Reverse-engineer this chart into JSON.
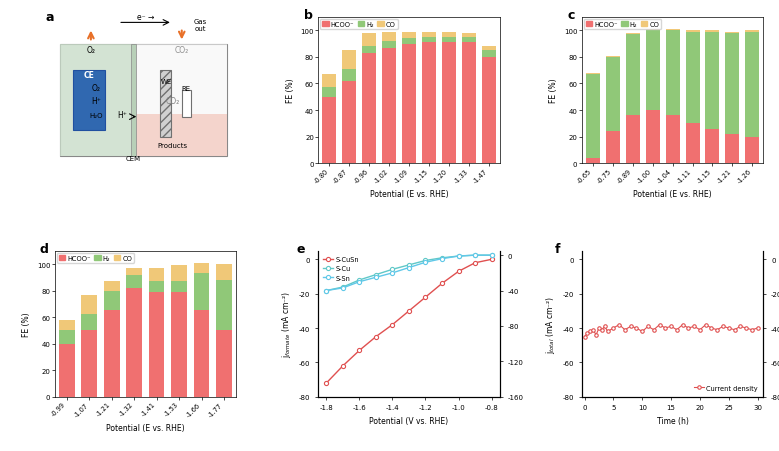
{
  "panel_b": {
    "potentials": [
      "-0.80",
      "-0.87",
      "-0.96",
      "-1.02",
      "-1.09",
      "-1.15",
      "-1.20",
      "-1.33",
      "-1.47"
    ],
    "HCOO": [
      50,
      62,
      83,
      87,
      90,
      91,
      91,
      91,
      80
    ],
    "H2": [
      7,
      9,
      5,
      5,
      4,
      4,
      4,
      4,
      5
    ],
    "CO": [
      10,
      14,
      10,
      7,
      5,
      4,
      4,
      3,
      3
    ]
  },
  "panel_c": {
    "potentials": [
      "-0.65",
      "-0.75",
      "-0.89",
      "-1.00",
      "-1.04",
      "-1.11",
      "-1.15",
      "-1.21",
      "-1.26"
    ],
    "HCOO": [
      4,
      24,
      36,
      40,
      36,
      30,
      26,
      22,
      20
    ],
    "H2": [
      63,
      56,
      61,
      60,
      64,
      69,
      73,
      76,
      79
    ],
    "CO": [
      1,
      1,
      1,
      1,
      1,
      1,
      1,
      1,
      1
    ]
  },
  "panel_d": {
    "potentials": [
      "-0.99",
      "-1.07",
      "-1.21",
      "-1.32",
      "-1.41",
      "-1.53",
      "-1.66",
      "-1.77"
    ],
    "HCOO": [
      40,
      50,
      65,
      82,
      79,
      79,
      65,
      50
    ],
    "H2": [
      10,
      12,
      15,
      10,
      8,
      8,
      28,
      38
    ],
    "CO": [
      8,
      15,
      7,
      5,
      10,
      12,
      8,
      12
    ]
  },
  "panel_e": {
    "S_CuSn_x": [
      -1.8,
      -1.7,
      -1.6,
      -1.5,
      -1.4,
      -1.3,
      -1.2,
      -1.1,
      -1.0,
      -0.9,
      -0.8
    ],
    "S_CuSn_y": [
      -72,
      -62,
      -53,
      -45,
      -38,
      -30,
      -22,
      -14,
      -7,
      -2,
      0
    ],
    "S_Cu_x": [
      -1.8,
      -1.7,
      -1.6,
      -1.5,
      -1.4,
      -1.3,
      -1.2,
      -1.1,
      -1.0,
      -0.9,
      -0.8
    ],
    "S_Cu_y": [
      -40,
      -36,
      -28,
      -22,
      -16,
      -11,
      -6,
      -3,
      -1,
      0,
      0
    ],
    "S_Sn_x": [
      -1.8,
      -1.7,
      -1.6,
      -1.5,
      -1.4,
      -1.3,
      -1.2,
      -1.1,
      -1.0,
      -0.9,
      -0.8
    ],
    "S_Sn_y": [
      -40,
      -37,
      -30,
      -25,
      -20,
      -14,
      -8,
      -4,
      -1,
      0,
      0
    ],
    "left_ylim": [
      -80,
      5
    ],
    "right_ylim": [
      -160,
      5
    ],
    "left_yticks": [
      0,
      -20,
      -40,
      -60,
      -80
    ],
    "right_yticks": [
      0,
      -40,
      -80,
      -120,
      -160
    ]
  },
  "panel_f": {
    "time": [
      0.0,
      0.5,
      1.0,
      1.5,
      2.0,
      2.5,
      3.0,
      3.5,
      4.0,
      5.0,
      6.0,
      7.0,
      8.0,
      9.0,
      10.0,
      11.0,
      12.0,
      13.0,
      14.0,
      15.0,
      16.0,
      17.0,
      18.0,
      19.0,
      20.0,
      21.0,
      22.0,
      23.0,
      24.0,
      25.0,
      26.0,
      27.0,
      28.0,
      29.0,
      30.0
    ],
    "current": [
      -45,
      -43,
      -42,
      -41,
      -44,
      -40,
      -41,
      -39,
      -42,
      -40,
      -38,
      -41,
      -39,
      -40,
      -42,
      -39,
      -41,
      -38,
      -40,
      -39,
      -41,
      -38,
      -40,
      -39,
      -41,
      -38,
      -40,
      -41,
      -39,
      -40,
      -41,
      -39,
      -40,
      -41,
      -40
    ],
    "ylim_left": [
      5,
      -80
    ],
    "ylim_right": [
      5,
      -80
    ],
    "yticks": [
      0,
      -20,
      -40,
      -60,
      -80
    ]
  },
  "colors": {
    "HCOO": "#f07070",
    "H2": "#90c878",
    "CO": "#f0c878",
    "S_CuSn": "#e05050",
    "S_Cu": "#60c8c8",
    "S_Sn": "#60c8e8",
    "current": "#e05050"
  }
}
